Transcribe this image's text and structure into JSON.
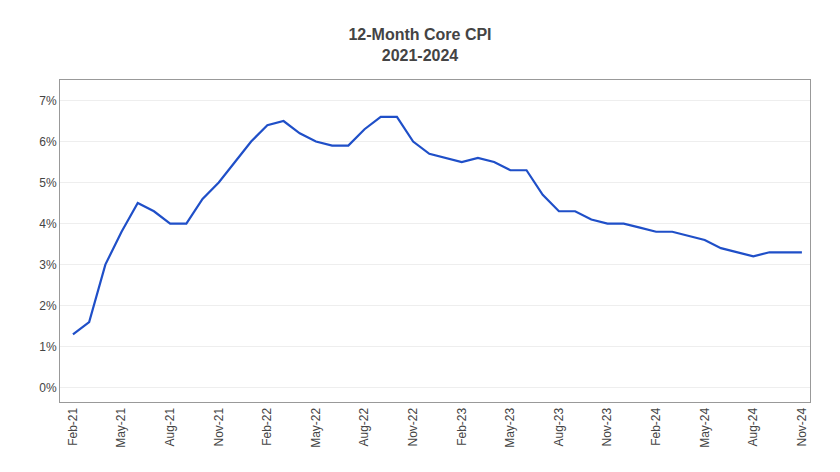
{
  "chart_data": {
    "type": "line",
    "title": "12-Month Core CPI",
    "subtitle": "2021-2024",
    "categories": [
      "Feb-21",
      null,
      null,
      "May-21",
      null,
      null,
      "Aug-21",
      null,
      null,
      "Nov-21",
      null,
      null,
      "Feb-22",
      null,
      null,
      "May-22",
      null,
      null,
      "Aug-22",
      null,
      null,
      "Nov-22",
      null,
      null,
      "Feb-23",
      null,
      null,
      "May-23",
      null,
      null,
      "Aug-23",
      null,
      null,
      "Nov-23",
      null,
      null,
      "Feb-24",
      null,
      null,
      "May-24",
      null,
      null,
      "Aug-24",
      null,
      null,
      "Nov-24"
    ],
    "values": [
      1.3,
      1.6,
      3.0,
      3.8,
      4.5,
      4.3,
      4.0,
      4.0,
      4.6,
      5.0,
      5.5,
      6.0,
      6.4,
      6.5,
      6.2,
      6.0,
      5.9,
      5.9,
      6.3,
      6.6,
      6.6,
      6.0,
      5.7,
      5.6,
      5.5,
      5.6,
      5.5,
      5.3,
      5.3,
      4.7,
      4.3,
      4.3,
      4.1,
      4.0,
      4.0,
      3.9,
      3.8,
      3.8,
      3.7,
      3.6,
      3.4,
      3.3,
      3.2,
      3.3,
      3.3,
      3.3
    ],
    "color": "#1f4fc8",
    "ylim": [
      -0.35,
      7.5
    ],
    "yticks": [
      {
        "value": 0,
        "label": "0%"
      },
      {
        "value": 1,
        "label": "1%"
      },
      {
        "value": 2,
        "label": "2%"
      },
      {
        "value": 3,
        "label": "3%"
      },
      {
        "value": 4,
        "label": "4%"
      },
      {
        "value": 5,
        "label": "5%"
      },
      {
        "value": 6,
        "label": "6%"
      },
      {
        "value": 7,
        "label": "7%"
      }
    ],
    "grid": true
  }
}
